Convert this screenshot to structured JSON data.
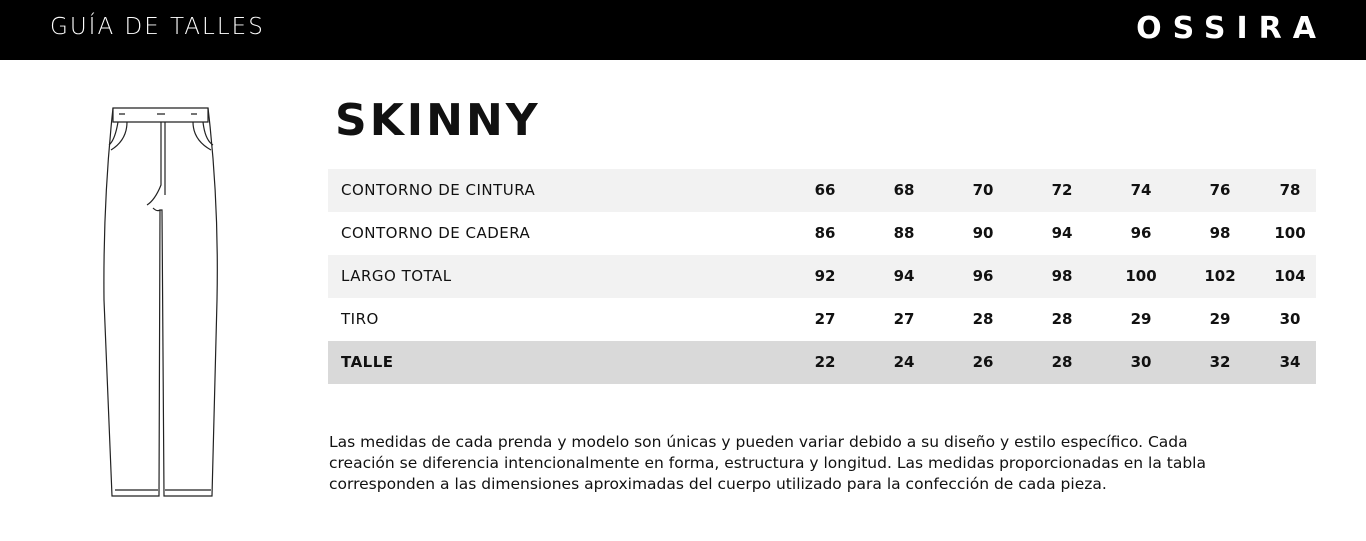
{
  "header": {
    "title": "GUÍA DE TALLES",
    "brand": "OSSIRA"
  },
  "product": {
    "title": "SKINNY"
  },
  "table": {
    "rows": [
      {
        "label": "CONTORNO DE CINTURA",
        "values": [
          66,
          68,
          70,
          72,
          74,
          76,
          78
        ]
      },
      {
        "label": "CONTORNO DE CADERA",
        "values": [
          86,
          88,
          90,
          94,
          96,
          98,
          100
        ]
      },
      {
        "label": "LARGO TOTAL",
        "values": [
          92,
          94,
          96,
          98,
          100,
          102,
          104
        ]
      },
      {
        "label": "TIRO",
        "values": [
          27,
          27,
          28,
          28,
          29,
          29,
          30
        ]
      },
      {
        "label": "TALLE",
        "values": [
          22,
          24,
          26,
          28,
          30,
          32,
          34
        ]
      }
    ]
  },
  "note": {
    "lines": [
      "Las medidas de cada prenda y modelo son únicas y pueden variar debido a su diseño y estilo específico. Cada",
      "creación se diferencia intencionalmente en forma, estructura y longitud. Las medidas proporcionadas en la tabla",
      "corresponden a las dimensiones aproximadas del cuerpo utilizado para la confección de cada pieza."
    ]
  }
}
